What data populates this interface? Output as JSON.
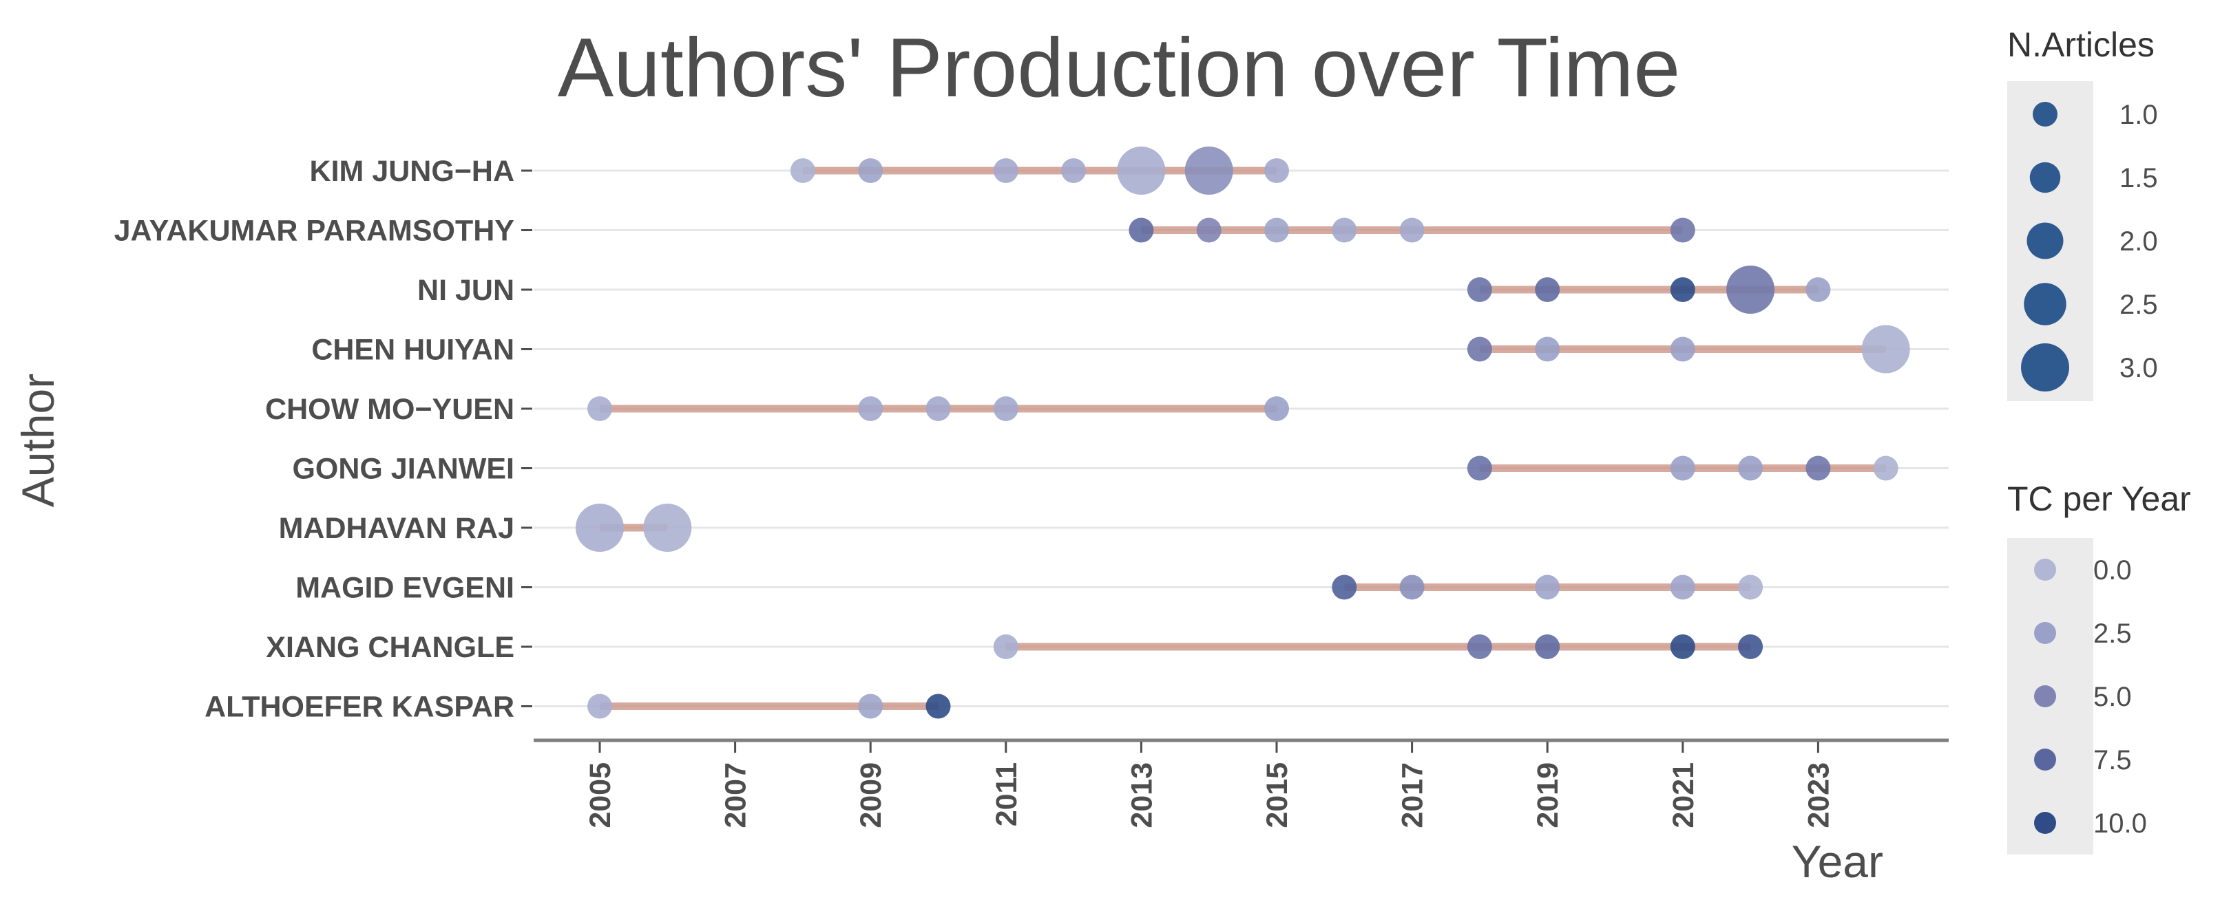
{
  "chart_data": {
    "type": "scatter",
    "title": "Authors' Production over Time",
    "xlabel": "Year",
    "ylabel": "Author",
    "x_ticks": [
      2005,
      2007,
      2009,
      2011,
      2013,
      2015,
      2017,
      2019,
      2021,
      2023
    ],
    "xlim": [
      2004,
      2025
    ],
    "grid": "horizontal",
    "colors": {
      "segment": "#c98e7e",
      "tc_scale": [
        "#b0b6d4",
        "#9aa1c8",
        "#7f84b3",
        "#5a679f",
        "#2f4c87"
      ],
      "legend_bg": "#ebebeb",
      "axis": "#7f7f7f",
      "gridline": "#e6e6e6"
    },
    "authors": [
      {
        "name": "KIM JUNG−HA",
        "points": [
          {
            "year": 2008,
            "articles": 1,
            "tc": 0.5
          },
          {
            "year": 2009,
            "articles": 1,
            "tc": 2.2
          },
          {
            "year": 2011,
            "articles": 1,
            "tc": 1.5
          },
          {
            "year": 2012,
            "articles": 1,
            "tc": 1.5
          },
          {
            "year": 2013,
            "articles": 3,
            "tc": 1.0
          },
          {
            "year": 2014,
            "articles": 3,
            "tc": 4.0
          },
          {
            "year": 2015,
            "articles": 1,
            "tc": 1.5
          }
        ]
      },
      {
        "name": "JAYAKUMAR PARAMSOTHY",
        "points": [
          {
            "year": 2013,
            "articles": 1,
            "tc": 7.0
          },
          {
            "year": 2014,
            "articles": 1,
            "tc": 5.0
          },
          {
            "year": 2015,
            "articles": 1,
            "tc": 2.0
          },
          {
            "year": 2016,
            "articles": 1,
            "tc": 1.5
          },
          {
            "year": 2017,
            "articles": 1,
            "tc": 1.5
          },
          {
            "year": 2021,
            "articles": 1,
            "tc": 6.0
          }
        ]
      },
      {
        "name": "NI JUN",
        "points": [
          {
            "year": 2018,
            "articles": 1,
            "tc": 6.5
          },
          {
            "year": 2019,
            "articles": 1,
            "tc": 7.0
          },
          {
            "year": 2021,
            "articles": 1,
            "tc": 11.0
          },
          {
            "year": 2022,
            "articles": 3,
            "tc": 6.0
          },
          {
            "year": 2023,
            "articles": 1,
            "tc": 2.5
          }
        ]
      },
      {
        "name": "CHEN HUIYAN",
        "points": [
          {
            "year": 2018,
            "articles": 1,
            "tc": 6.0
          },
          {
            "year": 2019,
            "articles": 1,
            "tc": 2.5
          },
          {
            "year": 2021,
            "articles": 1,
            "tc": 2.5
          },
          {
            "year": 2024,
            "articles": 3,
            "tc": 0.5
          }
        ]
      },
      {
        "name": "CHOW MO−YUEN",
        "points": [
          {
            "year": 2005,
            "articles": 1,
            "tc": 1.0
          },
          {
            "year": 2009,
            "articles": 1,
            "tc": 1.5
          },
          {
            "year": 2010,
            "articles": 1,
            "tc": 1.5
          },
          {
            "year": 2011,
            "articles": 1,
            "tc": 1.5
          },
          {
            "year": 2015,
            "articles": 1,
            "tc": 2.5
          }
        ]
      },
      {
        "name": "GONG JIANWEI",
        "points": [
          {
            "year": 2018,
            "articles": 1,
            "tc": 6.5
          },
          {
            "year": 2021,
            "articles": 1,
            "tc": 2.5
          },
          {
            "year": 2022,
            "articles": 1,
            "tc": 2.5
          },
          {
            "year": 2023,
            "articles": 1,
            "tc": 6.0
          },
          {
            "year": 2024,
            "articles": 1,
            "tc": 0.5
          }
        ]
      },
      {
        "name": "MADHAVAN RAJ",
        "points": [
          {
            "year": 2005,
            "articles": 3,
            "tc": 1.0
          },
          {
            "year": 2006,
            "articles": 3,
            "tc": 0.5
          }
        ]
      },
      {
        "name": "MAGID EVGENI",
        "points": [
          {
            "year": 2016,
            "articles": 1,
            "tc": 8.0
          },
          {
            "year": 2017,
            "articles": 1,
            "tc": 4.0
          },
          {
            "year": 2019,
            "articles": 1,
            "tc": 2.0
          },
          {
            "year": 2021,
            "articles": 1,
            "tc": 2.0
          },
          {
            "year": 2022,
            "articles": 1,
            "tc": 0.5
          }
        ]
      },
      {
        "name": "XIANG CHANGLE",
        "points": [
          {
            "year": 2011,
            "articles": 1,
            "tc": 1.0
          },
          {
            "year": 2018,
            "articles": 1,
            "tc": 6.5
          },
          {
            "year": 2019,
            "articles": 1,
            "tc": 7.0
          },
          {
            "year": 2021,
            "articles": 1,
            "tc": 11.0
          },
          {
            "year": 2022,
            "articles": 1,
            "tc": 9.0
          }
        ]
      },
      {
        "name": "ALTHOEFER KASPAR",
        "points": [
          {
            "year": 2005,
            "articles": 1,
            "tc": 1.0
          },
          {
            "year": 2009,
            "articles": 1,
            "tc": 2.0
          },
          {
            "year": 2010,
            "articles": 1,
            "tc": 10.0
          }
        ]
      }
    ],
    "legend_size": {
      "title": "N.Articles",
      "position": "right",
      "entries": [
        "1.0",
        "1.5",
        "2.0",
        "2.5",
        "3.0"
      ],
      "values": [
        1.0,
        1.5,
        2.0,
        2.5,
        3.0
      ]
    },
    "legend_color": {
      "title": "TC per Year",
      "position": "right",
      "entries": [
        "0.0",
        "2.5",
        "5.0",
        "7.5",
        "10.0"
      ],
      "values": [
        0.0,
        2.5,
        5.0,
        7.5,
        10.0
      ]
    }
  }
}
